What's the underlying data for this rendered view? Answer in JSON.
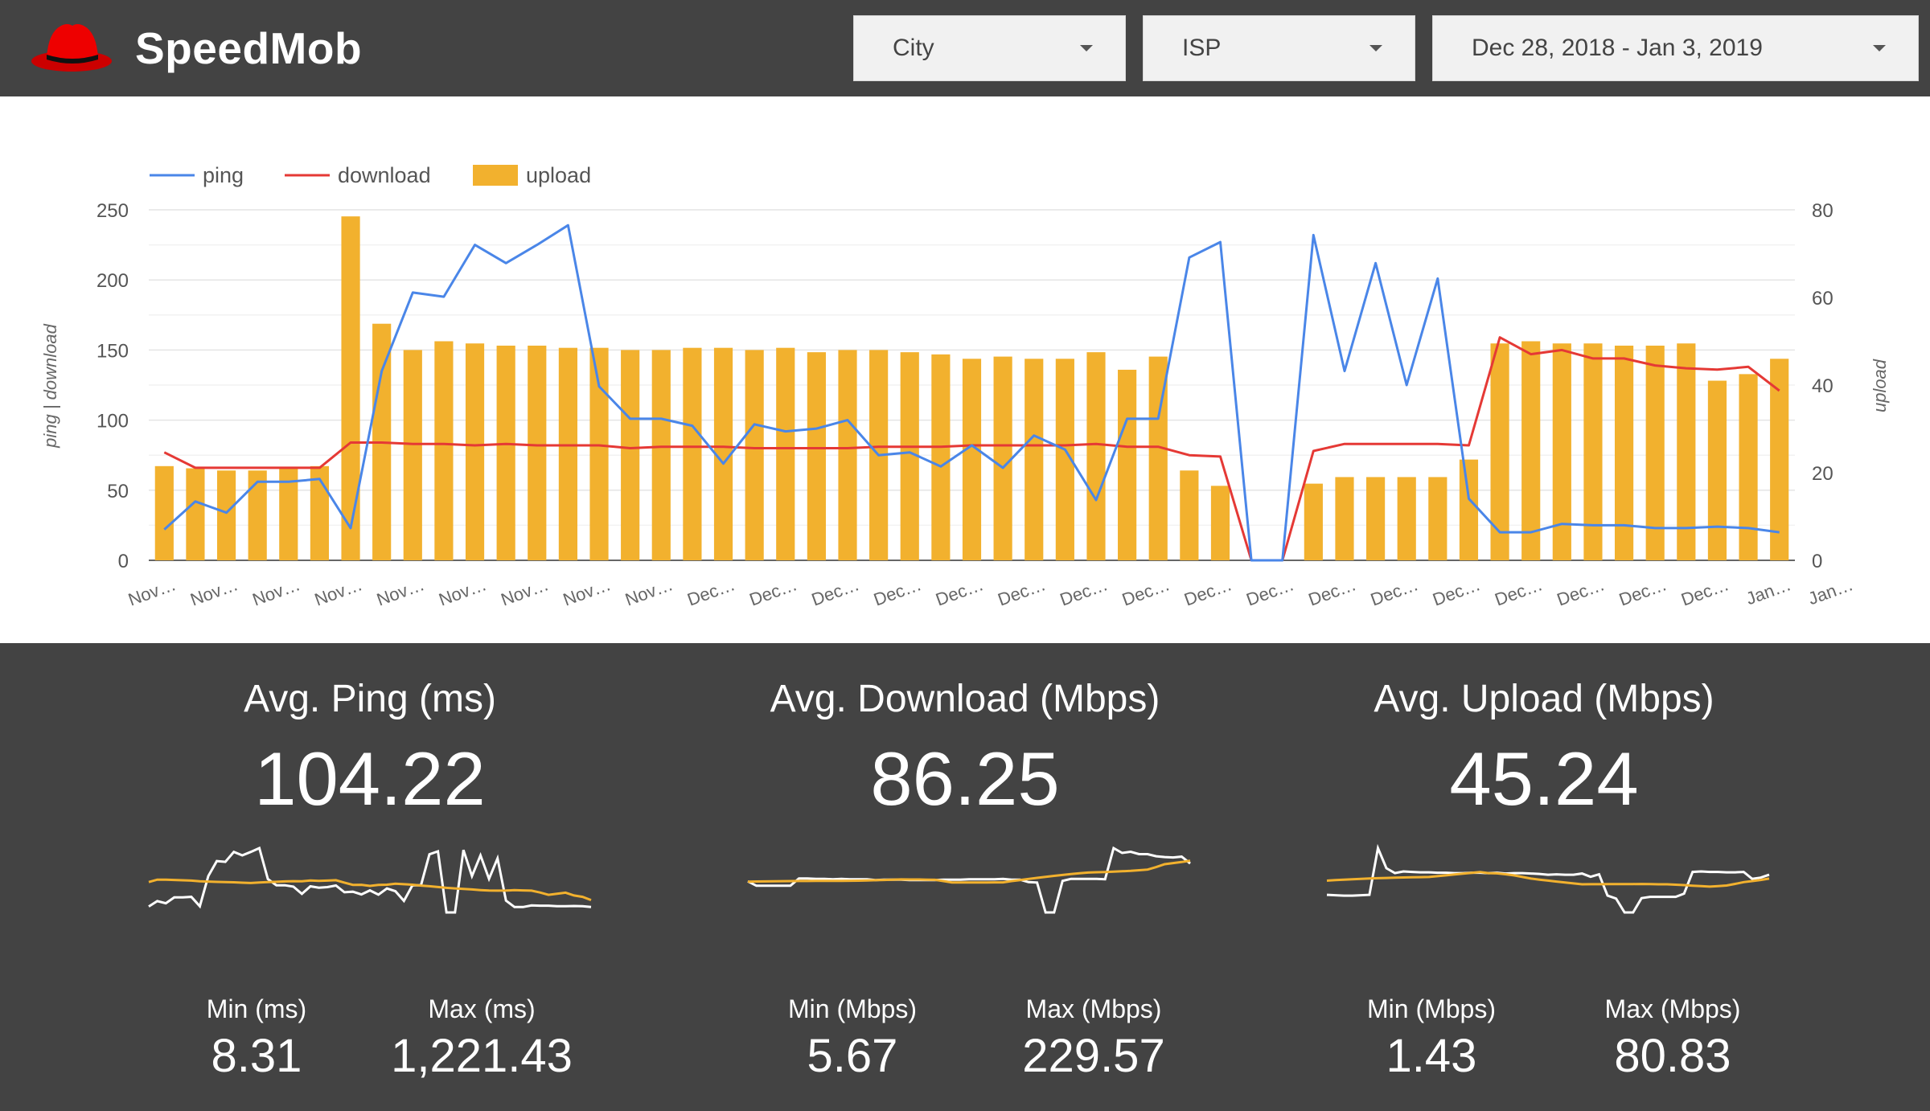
{
  "app": {
    "name": "SpeedMob",
    "logo_icon": "red-hat-icon",
    "logo_color": "#ee0000"
  },
  "filters": [
    {
      "label": "City"
    },
    {
      "label": "ISP"
    },
    {
      "label": "Dec 28, 2018 - Jan 3, 2019"
    }
  ],
  "chart_data": {
    "type": "combo",
    "legend": [
      {
        "name": "ping",
        "kind": "line",
        "color": "#4a86e8"
      },
      {
        "name": "download",
        "kind": "line",
        "color": "#e53935"
      },
      {
        "name": "upload",
        "kind": "bar",
        "color": "#f2b12e"
      }
    ],
    "legend_position": "top-left",
    "left_axis": {
      "label": "ping | download",
      "min": 0,
      "max": 250,
      "ticks": [
        0,
        50,
        100,
        150,
        200,
        250
      ]
    },
    "right_axis": {
      "label": "upload",
      "min": 0,
      "max": 80,
      "ticks": [
        0,
        20,
        40,
        60,
        80
      ]
    },
    "gridlines": true,
    "x_tick_labels": [
      "Nov…",
      "Nov…",
      "Nov…",
      "Nov…",
      "Nov…",
      "Nov…",
      "Nov…",
      "Nov…",
      "Nov…",
      "Dec…",
      "Dec…",
      "Dec…",
      "Dec…",
      "Dec…",
      "Dec…",
      "Dec…",
      "Dec…",
      "Dec…",
      "Dec…",
      "Dec…",
      "Dec…",
      "Dec…",
      "Dec…",
      "Dec…",
      "Dec…",
      "Dec…",
      "Jan…",
      "Jan…"
    ],
    "upload": [
      21.5,
      21,
      20.5,
      20.5,
      21,
      21.5,
      78.5,
      54,
      48,
      50,
      49.5,
      49,
      49,
      48.5,
      48.5,
      48,
      48,
      48.5,
      48.5,
      48,
      48.5,
      47.5,
      48,
      48,
      47.5,
      47,
      46,
      46.5,
      46,
      46,
      47.5,
      43.5,
      46.5,
      20.5,
      17,
      0,
      0,
      17.5,
      19,
      19,
      19,
      19,
      23,
      49.5,
      50,
      49.5,
      49.5,
      49,
      49,
      49.5,
      41,
      42.5,
      46
    ],
    "ping": [
      22,
      42,
      34,
      56,
      56,
      58,
      23,
      135,
      191,
      188,
      225,
      212,
      225,
      239,
      124,
      101,
      101,
      96,
      69,
      97,
      92,
      94,
      100,
      75,
      77,
      67,
      82,
      66,
      89,
      79,
      43,
      101,
      101,
      216,
      227,
      0,
      0,
      232,
      135,
      212,
      125,
      201,
      44,
      20,
      20,
      26,
      25,
      25,
      23,
      23,
      24,
      23,
      20
    ],
    "download": [
      77,
      66,
      66,
      66,
      66,
      66,
      84,
      84,
      83,
      83,
      82,
      83,
      82,
      82,
      82,
      80,
      81,
      81,
      81,
      80,
      80,
      80,
      80,
      81,
      81,
      81,
      82,
      82,
      82,
      82,
      83,
      81,
      81,
      75,
      74,
      0,
      0,
      78,
      83,
      83,
      83,
      83,
      82,
      159,
      147,
      150,
      144,
      144,
      139,
      137,
      136,
      138,
      121
    ]
  },
  "stats": [
    {
      "title": "Avg. Ping (ms)",
      "value": "104.22",
      "min_label": "Min (ms)",
      "min_value": "8.31",
      "max_label": "Max (ms)",
      "max_value": "1,221.43",
      "trend_color": "#f2b12e"
    },
    {
      "title": "Avg. Download (Mbps)",
      "value": "86.25",
      "min_label": "Min (Mbps)",
      "min_value": "5.67",
      "max_label": "Max (Mbps)",
      "max_value": "229.57",
      "trend_color": "#f2b12e"
    },
    {
      "title": "Avg. Upload (Mbps)",
      "value": "45.24",
      "min_label": "Min (Mbps)",
      "min_value": "1.43",
      "max_label": "Max (Mbps)",
      "max_value": "80.83",
      "trend_color": "#f2b12e"
    }
  ]
}
